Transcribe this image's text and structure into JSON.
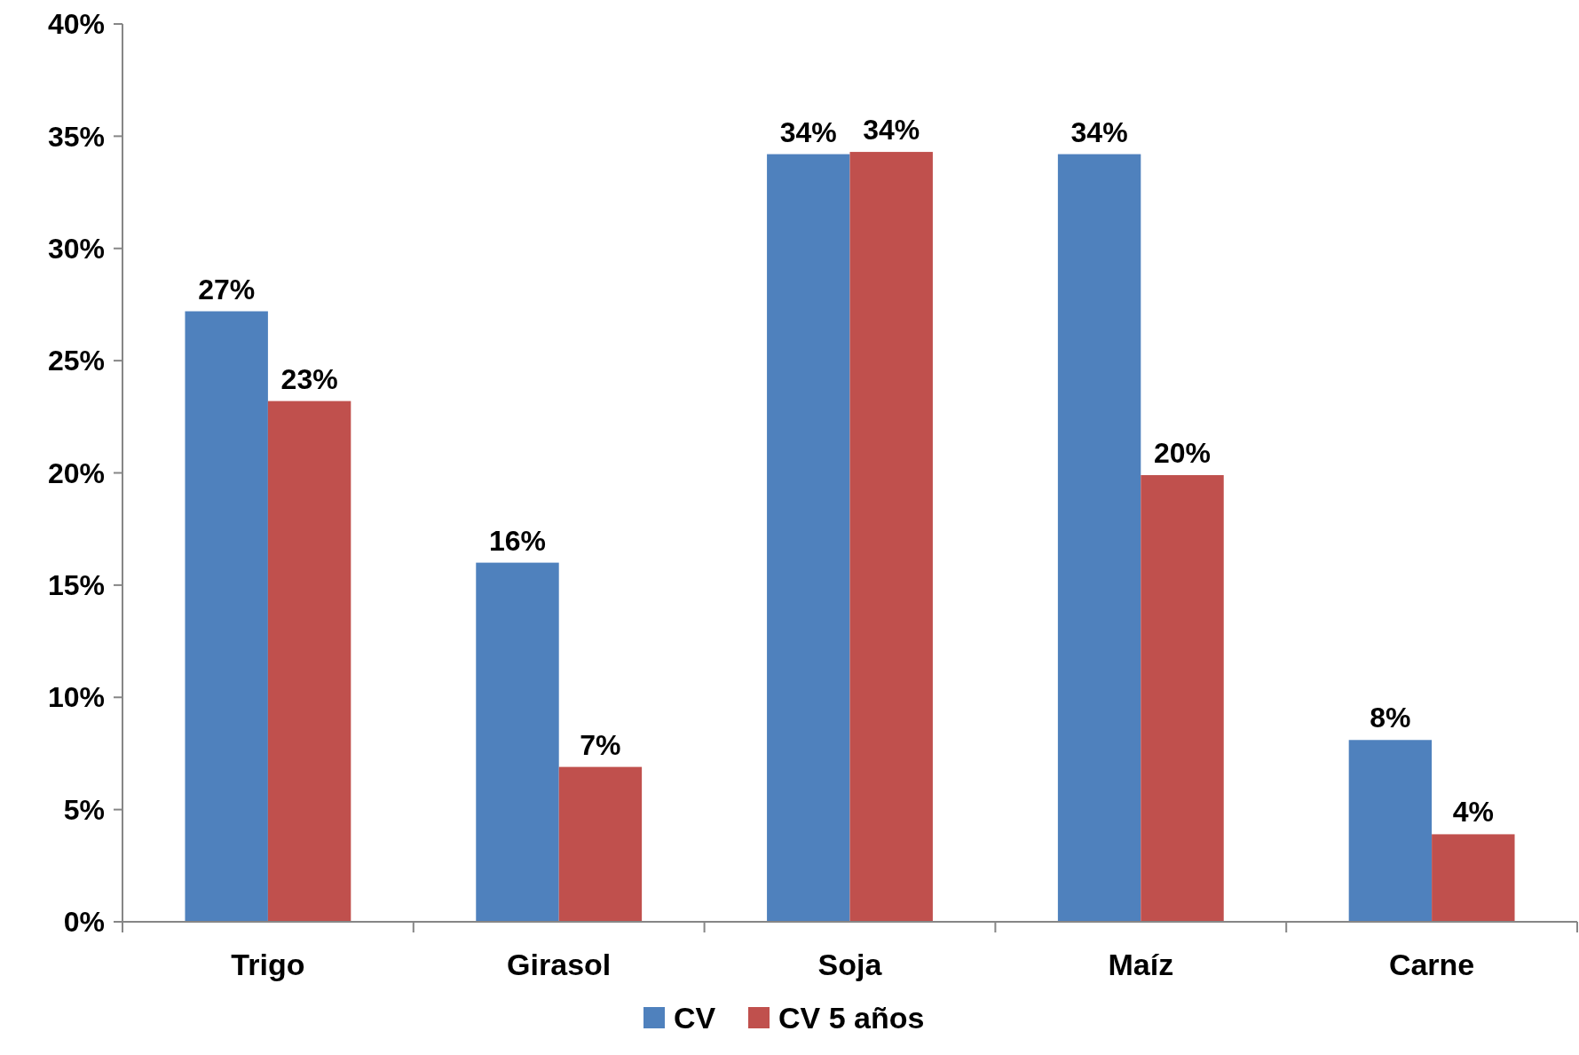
{
  "chart_data": {
    "type": "bar",
    "categories": [
      "Trigo",
      "Girasol",
      "Soja",
      "Maíz",
      "Carne"
    ],
    "series": [
      {
        "name": "CV",
        "color": "#4f81bd",
        "values": [
          27.2,
          16.0,
          34.2,
          34.2,
          8.1
        ],
        "value_labels": [
          "27%",
          "16%",
          "34%",
          "34%",
          "8%"
        ]
      },
      {
        "name": "CV 5 años",
        "color": "#c0504d",
        "values": [
          23.2,
          6.9,
          34.3,
          19.9,
          3.9
        ],
        "value_labels": [
          "23%",
          "7%",
          "34%",
          "20%",
          "4%"
        ]
      }
    ],
    "ylim": [
      0,
      40
    ],
    "yticks": [
      {
        "value": 0,
        "label": "0%"
      },
      {
        "value": 5,
        "label": "5%"
      },
      {
        "value": 10,
        "label": "10%"
      },
      {
        "value": 15,
        "label": "15%"
      },
      {
        "value": 20,
        "label": "20%"
      },
      {
        "value": 25,
        "label": "25%"
      },
      {
        "value": 30,
        "label": "30%"
      },
      {
        "value": 35,
        "label": "35%"
      },
      {
        "value": 40,
        "label": "40%"
      }
    ],
    "grid": false,
    "legend": "bottom"
  }
}
